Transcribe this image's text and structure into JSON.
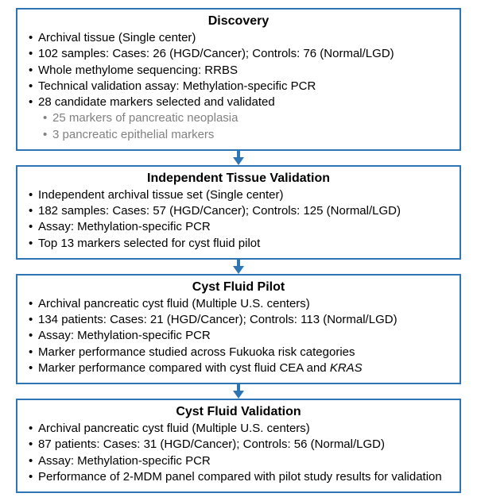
{
  "layout": {
    "block_border_color": "#2e75b6",
    "arrow_fill_color": "#2e75b6",
    "text_color": "#000000",
    "sub_text_color": "#808080",
    "title_fontsize": 16,
    "bullet_fontsize": 15
  },
  "blocks": [
    {
      "title": "Discovery",
      "bullets": [
        {
          "text": "Archival tissue (Single center)"
        },
        {
          "text": "102 samples: Cases: 26 (HGD/Cancer); Controls: 76 (Normal/LGD)"
        },
        {
          "text": "Whole methylome sequencing: RRBS"
        },
        {
          "text": "Technical validation assay: Methylation-specific PCR"
        },
        {
          "text": "28 candidate markers selected and validated",
          "sub": [
            {
              "text": "25 markers of pancreatic neoplasia"
            },
            {
              "text": "3 pancreatic epithelial markers"
            }
          ]
        }
      ]
    },
    {
      "title": "Independent Tissue Validation",
      "bullets": [
        {
          "text": "Independent archival tissue set (Single center)"
        },
        {
          "text": "182 samples: Cases: 57 (HGD/Cancer); Controls: 125 (Normal/LGD)"
        },
        {
          "text": "Assay: Methylation-specific PCR"
        },
        {
          "text": "Top 13 markers selected for cyst fluid pilot"
        }
      ]
    },
    {
      "title": "Cyst Fluid Pilot",
      "bullets": [
        {
          "text": "Archival pancreatic cyst fluid (Multiple U.S. centers)"
        },
        {
          "text": "134 patients: Cases: 21 (HGD/Cancer); Controls: 113 (Normal/LGD)"
        },
        {
          "text": "Assay: Methylation-specific PCR"
        },
        {
          "text": "Marker performance studied across Fukuoka risk categories"
        },
        {
          "text_html": "Marker performance compared with cyst fluid CEA and <span class=\"italic\">KRAS</span>"
        }
      ]
    },
    {
      "title": "Cyst Fluid Validation",
      "bullets": [
        {
          "text": "Archival pancreatic cyst fluid (Multiple U.S. centers)"
        },
        {
          "text": "87 patients: Cases: 31 (HGD/Cancer); Controls: 56 (Normal/LGD)"
        },
        {
          "text": "Assay: Methylation-specific PCR"
        },
        {
          "text": "Performance of 2-MDM panel compared with pilot study results for validation"
        }
      ]
    }
  ]
}
